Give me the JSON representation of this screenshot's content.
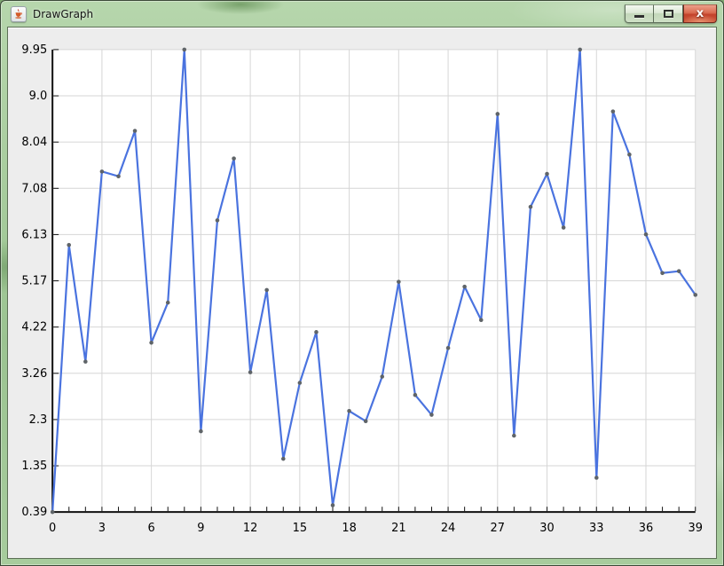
{
  "window": {
    "title": "DrawGraph",
    "icon": "java-coffee-cup-icon",
    "controls": {
      "minimize_label": "minimize",
      "maximize_label": "maximize",
      "close_label": "x"
    }
  },
  "colors": {
    "line": "#4a73df",
    "point": "#5f6468",
    "grid": "#d6d6d6",
    "axis": "#111111",
    "panel_bg": "#ededed",
    "plot_bg": "#ffffff",
    "titlebar_green": "#a4ca9a",
    "close_red": "#c2412a"
  },
  "chart_data": {
    "type": "line",
    "title": "",
    "xlabel": "",
    "ylabel": "",
    "x": [
      0,
      1,
      2,
      3,
      4,
      5,
      6,
      7,
      8,
      9,
      10,
      11,
      12,
      13,
      14,
      15,
      16,
      17,
      18,
      19,
      20,
      21,
      22,
      23,
      24,
      25,
      26,
      27,
      28,
      29,
      30,
      31,
      32,
      33,
      34,
      35,
      36,
      37,
      38,
      39
    ],
    "values": [
      0.39,
      5.91,
      3.5,
      7.43,
      7.33,
      8.27,
      3.89,
      4.72,
      9.95,
      2.06,
      6.42,
      7.7,
      3.28,
      4.98,
      1.49,
      3.06,
      4.11,
      0.53,
      2.48,
      2.27,
      3.19,
      5.15,
      2.81,
      2.4,
      3.78,
      5.05,
      4.36,
      8.62,
      1.97,
      6.7,
      7.38,
      6.27,
      9.95,
      1.1,
      8.67,
      7.78,
      6.13,
      5.33,
      5.37,
      4.88
    ],
    "xlim": [
      0,
      39
    ],
    "ylim": [
      0.39,
      9.95
    ],
    "x_tick_step_labeled": 3,
    "x_tick_step_minor": 1,
    "x_tick_labels": [
      "0",
      "3",
      "6",
      "9",
      "12",
      "15",
      "18",
      "21",
      "24",
      "27",
      "30",
      "33",
      "36",
      "39"
    ],
    "y_tick_labels": [
      "0.39",
      "1.35",
      "2.3",
      "3.26",
      "4.22",
      "5.17",
      "6.13",
      "7.08",
      "8.04",
      "9.0",
      "9.95"
    ],
    "grid": true,
    "legend": false,
    "point_marker": "dot"
  }
}
